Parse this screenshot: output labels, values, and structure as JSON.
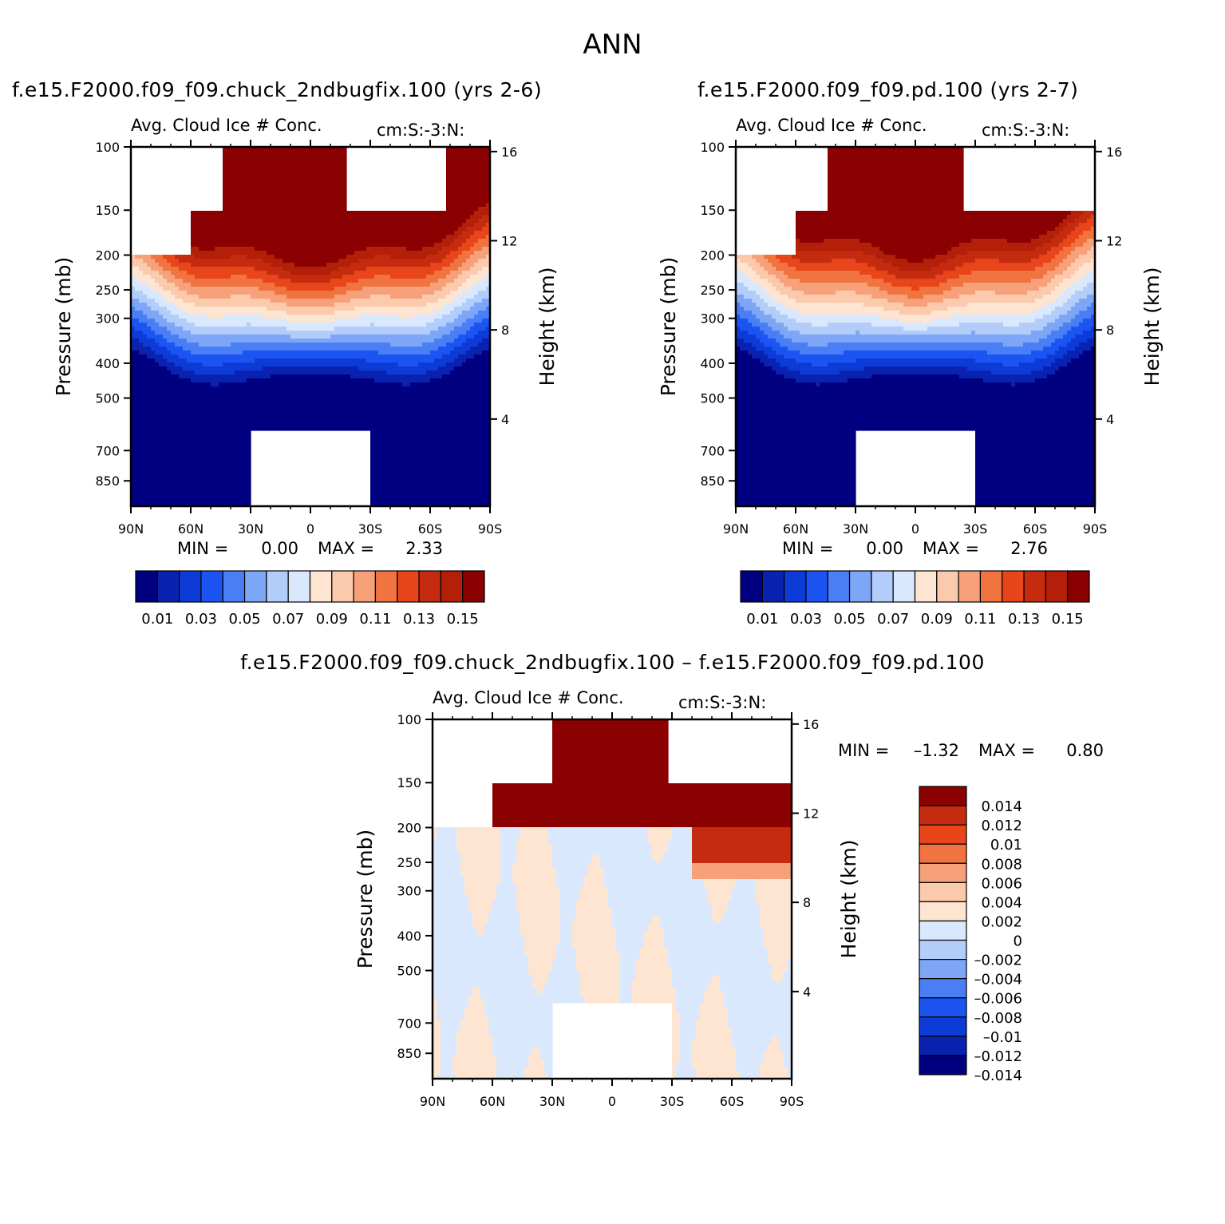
{
  "figure_title": "ANN",
  "colors": {
    "seq_palette": [
      "#000080",
      "#0a22b0",
      "#0d3bd8",
      "#1c54f2",
      "#4a7ef5",
      "#7ea6f7",
      "#b3cdfa",
      "#d9e8fc",
      "#fde5d2",
      "#fbc9ab",
      "#f7a17a",
      "#f07340",
      "#e8461a",
      "#c52b0f",
      "#b31f08",
      "#8b0000"
    ],
    "diff_palette": [
      "#000080",
      "#0a22b0",
      "#0d3bd8",
      "#1c54f2",
      "#4a7ef5",
      "#7ea6f7",
      "#b3cdfa",
      "#d9e8fc",
      "#fde5d2",
      "#fbc9ab",
      "#f7a17a",
      "#f07340",
      "#e8461a",
      "#c52b0f",
      "#8b0000"
    ]
  },
  "chart_data": [
    {
      "type": "heatmap",
      "panel_title": "f.e15.F2000.f09_f09.chuck_2ndbugfix.100 (yrs 2-6)",
      "plot_title": "Avg. Cloud Ice # Conc.",
      "units": "cm:S:-3:N:",
      "xlabel": "",
      "ylabel": "Pressure (mb)",
      "y2label": "Height (km)",
      "x_ticks": [
        "90N",
        "60N",
        "30N",
        "0",
        "30S",
        "60S",
        "90S"
      ],
      "x_range": [
        90,
        -90
      ],
      "y_ticks": [
        100,
        150,
        200,
        250,
        300,
        400,
        500,
        700,
        850
      ],
      "y_range": [
        100,
        1000
      ],
      "y2_ticks": [
        16,
        12,
        8,
        4
      ],
      "min_label": "MIN =",
      "min_value": "0.00",
      "max_label": "MAX =",
      "max_value": "2.33",
      "contour_levels": [
        "0.01",
        "0.03",
        "0.05",
        "0.07",
        "0.09",
        "0.11",
        "0.13",
        "0.15"
      ],
      "contour_level_values": [
        0.01,
        0.02,
        0.03,
        0.04,
        0.05,
        0.06,
        0.07,
        0.08,
        0.09,
        0.1,
        0.11,
        0.12,
        0.13,
        0.14,
        0.15
      ]
    },
    {
      "type": "heatmap",
      "panel_title": "f.e15.F2000.f09_f09.pd.100 (yrs 2-7)",
      "plot_title": "Avg. Cloud Ice # Conc.",
      "units": "cm:S:-3:N:",
      "xlabel": "",
      "ylabel": "Pressure (mb)",
      "y2label": "Height (km)",
      "x_ticks": [
        "90N",
        "60N",
        "30N",
        "0",
        "30S",
        "60S",
        "90S"
      ],
      "x_range": [
        90,
        -90
      ],
      "y_ticks": [
        100,
        150,
        200,
        250,
        300,
        400,
        500,
        700,
        850
      ],
      "y_range": [
        100,
        1000
      ],
      "y2_ticks": [
        16,
        12,
        8,
        4
      ],
      "min_label": "MIN =",
      "min_value": "0.00",
      "max_label": "MAX =",
      "max_value": "2.76",
      "contour_levels": [
        "0.01",
        "0.03",
        "0.05",
        "0.07",
        "0.09",
        "0.11",
        "0.13",
        "0.15"
      ],
      "contour_level_values": [
        0.01,
        0.02,
        0.03,
        0.04,
        0.05,
        0.06,
        0.07,
        0.08,
        0.09,
        0.1,
        0.11,
        0.12,
        0.13,
        0.14,
        0.15
      ]
    },
    {
      "type": "heatmap",
      "panel_title": "f.e15.F2000.f09_f09.chuck_2ndbugfix.100 – f.e15.F2000.f09_f09.pd.100",
      "plot_title": "Avg. Cloud Ice # Conc.",
      "units": "cm:S:-3:N:",
      "xlabel": "",
      "ylabel": "Pressure (mb)",
      "y2label": "Height (km)",
      "x_ticks": [
        "90N",
        "60N",
        "30N",
        "0",
        "30S",
        "60S",
        "90S"
      ],
      "x_range": [
        90,
        -90
      ],
      "y_ticks": [
        100,
        150,
        200,
        250,
        300,
        400,
        500,
        700,
        850
      ],
      "y_range": [
        100,
        1000
      ],
      "y2_ticks": [
        16,
        12,
        8,
        4
      ],
      "min_label": "MIN =",
      "min_value": "–1.32",
      "max_label": "MAX =",
      "max_value": "0.80",
      "contour_levels": [
        "0.014",
        "0.012",
        "0.01",
        "0.008",
        "0.006",
        "0.004",
        "0.002",
        "0",
        "–0.002",
        "–0.004",
        "–0.006",
        "–0.008",
        "–0.01",
        "–0.012",
        "–0.014"
      ]
    }
  ]
}
